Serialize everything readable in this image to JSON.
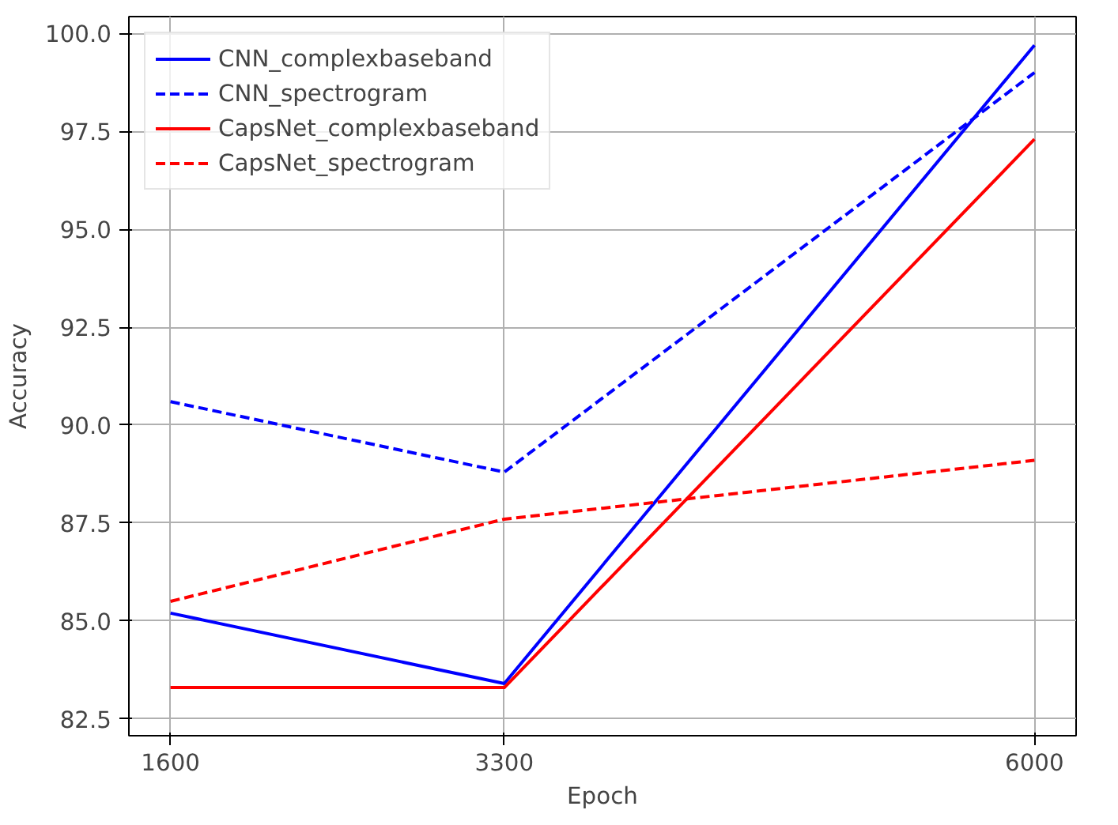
{
  "chart_data": {
    "type": "line",
    "xlabel": "Epoch",
    "ylabel": "Accuracy",
    "x": [
      1600,
      3300,
      6000
    ],
    "xlim": [
      1388,
      6212
    ],
    "ylim": [
      82.07,
      100.43
    ],
    "xticks": [
      1600,
      3300,
      6000
    ],
    "yticks": [
      {
        "value": 82.5,
        "label": "82.5"
      },
      {
        "value": 85,
        "label": "85.0"
      },
      {
        "value": 87.5,
        "label": "87.5"
      },
      {
        "value": 90,
        "label": "90.0"
      },
      {
        "value": 92.5,
        "label": "92.5"
      },
      {
        "value": 95,
        "label": "95.0"
      },
      {
        "value": 97.5,
        "label": "97.5"
      },
      {
        "value": 100,
        "label": "100.0"
      }
    ],
    "grid": true,
    "legend": "top left",
    "series": [
      {
        "name": "CNN_complexbaseband",
        "color": "#0000ff",
        "line_style": "solid",
        "values": [
          85.2,
          83.4,
          99.7
        ]
      },
      {
        "name": "CNN_spectrogram",
        "color": "#0000ff",
        "line_style": "dashed",
        "values": [
          90.6,
          88.8,
          99.0
        ]
      },
      {
        "name": "CapsNet_complexbaseband",
        "color": "#ff0000",
        "line_style": "solid",
        "values": [
          83.3,
          83.3,
          97.3
        ]
      },
      {
        "name": "CapsNet_spectrogram",
        "color": "#ff0000",
        "line_style": "dashed",
        "values": [
          85.5,
          87.6,
          89.1
        ]
      }
    ]
  }
}
